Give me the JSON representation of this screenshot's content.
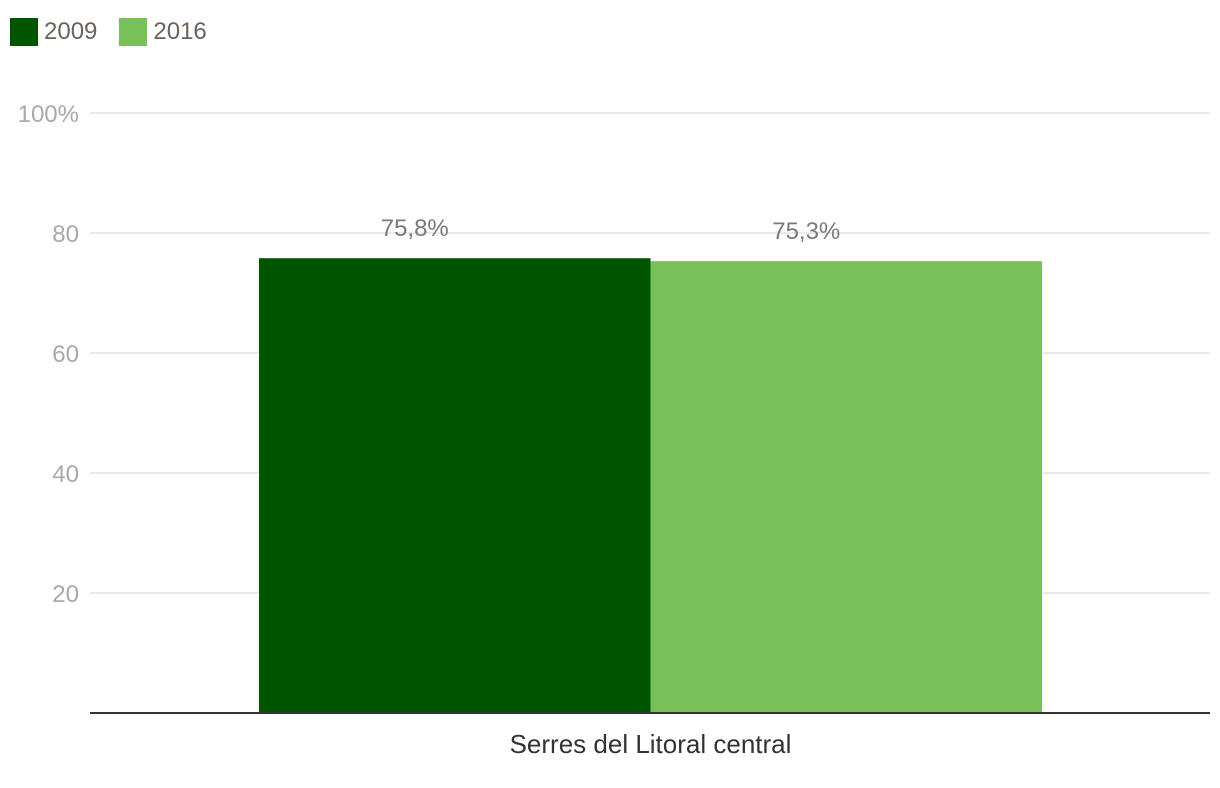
{
  "chart_data": {
    "type": "bar",
    "categories": [
      "Serres del Litoral central"
    ],
    "series": [
      {
        "name": "2009",
        "values": [
          75.8
        ],
        "color": "#005500",
        "label": "75,8%"
      },
      {
        "name": "2016",
        "values": [
          75.3
        ],
        "color": "#78c158",
        "label": "75,3%"
      }
    ],
    "ylim": [
      0,
      100
    ],
    "yticks": [
      20,
      40,
      60,
      80,
      100
    ],
    "ytick_labels": [
      "20",
      "40",
      "60",
      "80",
      "100%"
    ],
    "grid": true,
    "legend": "top-left",
    "xlabel": "",
    "ylabel": ""
  }
}
